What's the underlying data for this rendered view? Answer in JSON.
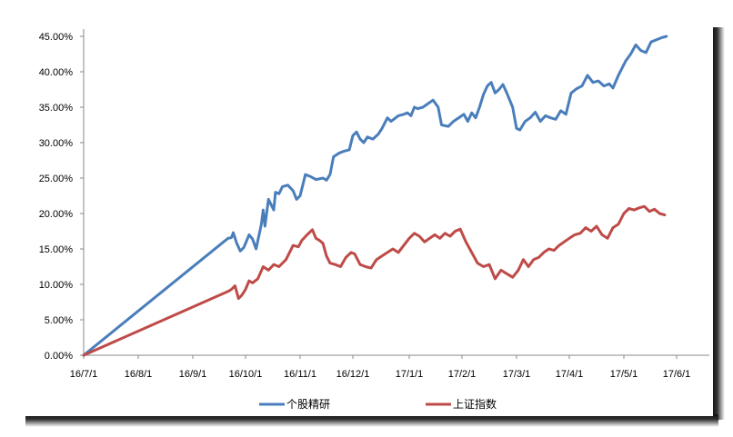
{
  "chart_data": {
    "type": "line",
    "title": "",
    "xlabel": "",
    "ylabel": "",
    "ylim": [
      0,
      45
    ],
    "yticks": [
      0,
      5,
      10,
      15,
      20,
      25,
      30,
      35,
      40,
      45
    ],
    "ytick_labels": [
      "0.00%",
      "5.00%",
      "10.00%",
      "15.00%",
      "20.00%",
      "25.00%",
      "30.00%",
      "35.00%",
      "40.00%",
      "45.00%"
    ],
    "xticks": [
      "16/7/1",
      "16/8/1",
      "16/9/1",
      "16/10/1",
      "16/11/1",
      "16/12/1",
      "17/1/1",
      "17/2/1",
      "17/3/1",
      "17/4/1",
      "17/5/1",
      "17/6/1"
    ],
    "legend_position": "bottom",
    "grid": false,
    "series": [
      {
        "name": "个股精研",
        "color": "#4a7ebb",
        "points": [
          [
            "2016-07-01",
            0.0
          ],
          [
            "2016-09-21",
            16.5
          ],
          [
            "2016-09-23",
            16.6
          ],
          [
            "2016-09-24",
            17.3
          ],
          [
            "2016-09-26",
            15.8
          ],
          [
            "2016-09-28",
            14.7
          ],
          [
            "2016-09-30",
            15.2
          ],
          [
            "2016-10-03",
            17.0
          ],
          [
            "2016-10-05",
            16.4
          ],
          [
            "2016-10-07",
            15.0
          ],
          [
            "2016-10-10",
            18.5
          ],
          [
            "2016-10-11",
            20.5
          ],
          [
            "2016-10-12",
            18.2
          ],
          [
            "2016-10-14",
            22.0
          ],
          [
            "2016-10-17",
            20.5
          ],
          [
            "2016-10-18",
            23.0
          ],
          [
            "2016-10-20",
            22.8
          ],
          [
            "2016-10-22",
            23.8
          ],
          [
            "2016-10-25",
            24.0
          ],
          [
            "2016-10-28",
            23.2
          ],
          [
            "2016-10-30",
            22.0
          ],
          [
            "2016-11-01",
            22.5
          ],
          [
            "2016-11-04",
            25.5
          ],
          [
            "2016-11-07",
            25.2
          ],
          [
            "2016-11-10",
            24.8
          ],
          [
            "2016-11-14",
            25.0
          ],
          [
            "2016-11-16",
            24.7
          ],
          [
            "2016-11-18",
            25.5
          ],
          [
            "2016-11-20",
            28.0
          ],
          [
            "2016-11-23",
            28.5
          ],
          [
            "2016-11-26",
            28.8
          ],
          [
            "2016-11-29",
            29.0
          ],
          [
            "2016-12-01",
            31.0
          ],
          [
            "2016-12-03",
            31.5
          ],
          [
            "2016-12-05",
            30.5
          ],
          [
            "2016-12-07",
            30.0
          ],
          [
            "2016-12-09",
            30.8
          ],
          [
            "2016-12-12",
            30.5
          ],
          [
            "2016-12-15",
            31.2
          ],
          [
            "2016-12-17",
            32.0
          ],
          [
            "2016-12-20",
            33.5
          ],
          [
            "2016-12-22",
            33.0
          ],
          [
            "2016-12-26",
            33.8
          ],
          [
            "2016-12-29",
            34.0
          ],
          [
            "2016-12-31",
            34.2
          ],
          [
            "2017-01-02",
            33.8
          ],
          [
            "2017-01-04",
            35.0
          ],
          [
            "2017-01-06",
            34.8
          ],
          [
            "2017-01-09",
            35.0
          ],
          [
            "2017-01-12",
            35.5
          ],
          [
            "2017-01-15",
            36.0
          ],
          [
            "2017-01-18",
            35.0
          ],
          [
            "2017-01-20",
            32.5
          ],
          [
            "2017-01-24",
            32.3
          ],
          [
            "2017-01-27",
            33.0
          ],
          [
            "2017-01-30",
            33.5
          ],
          [
            "2017-02-02",
            34.0
          ],
          [
            "2017-02-04",
            33.0
          ],
          [
            "2017-02-06",
            34.2
          ],
          [
            "2017-02-08",
            33.5
          ],
          [
            "2017-02-10",
            35.0
          ],
          [
            "2017-02-12",
            36.8
          ],
          [
            "2017-02-14",
            38.0
          ],
          [
            "2017-02-16",
            38.5
          ],
          [
            "2017-02-18",
            37.0
          ],
          [
            "2017-02-20",
            37.5
          ],
          [
            "2017-02-22",
            38.2
          ],
          [
            "2017-02-24",
            37.0
          ],
          [
            "2017-02-27",
            35.0
          ],
          [
            "2017-03-01",
            32.0
          ],
          [
            "2017-03-03",
            31.8
          ],
          [
            "2017-03-06",
            33.0
          ],
          [
            "2017-03-09",
            33.5
          ],
          [
            "2017-03-12",
            34.3
          ],
          [
            "2017-03-15",
            33.0
          ],
          [
            "2017-03-18",
            33.8
          ],
          [
            "2017-03-21",
            33.5
          ],
          [
            "2017-03-24",
            33.3
          ],
          [
            "2017-03-27",
            34.5
          ],
          [
            "2017-03-30",
            34.0
          ],
          [
            "2017-04-02",
            37.0
          ],
          [
            "2017-04-05",
            37.6
          ],
          [
            "2017-04-08",
            38.0
          ],
          [
            "2017-04-11",
            39.5
          ],
          [
            "2017-04-14",
            38.5
          ],
          [
            "2017-04-17",
            38.7
          ],
          [
            "2017-04-20",
            38.0
          ],
          [
            "2017-04-23",
            38.3
          ],
          [
            "2017-04-25",
            37.7
          ],
          [
            "2017-04-28",
            39.5
          ],
          [
            "2017-05-02",
            41.5
          ],
          [
            "2017-05-05",
            42.5
          ],
          [
            "2017-05-08",
            43.8
          ],
          [
            "2017-05-11",
            43.0
          ],
          [
            "2017-05-14",
            42.7
          ],
          [
            "2017-05-17",
            44.2
          ],
          [
            "2017-05-20",
            44.5
          ],
          [
            "2017-05-23",
            44.8
          ],
          [
            "2017-05-26",
            45.0
          ]
        ]
      },
      {
        "name": "上证指数",
        "color": "#be4b48",
        "points": [
          [
            "2016-07-01",
            0.0
          ],
          [
            "2016-09-21",
            9.0
          ],
          [
            "2016-09-23",
            9.3
          ],
          [
            "2016-09-25",
            9.8
          ],
          [
            "2016-09-27",
            8.0
          ],
          [
            "2016-09-29",
            8.5
          ],
          [
            "2016-10-01",
            9.3
          ],
          [
            "2016-10-03",
            10.5
          ],
          [
            "2016-10-05",
            10.2
          ],
          [
            "2016-10-08",
            10.8
          ],
          [
            "2016-10-11",
            12.5
          ],
          [
            "2016-10-14",
            12.0
          ],
          [
            "2016-10-17",
            12.8
          ],
          [
            "2016-10-20",
            12.5
          ],
          [
            "2016-10-24",
            13.5
          ],
          [
            "2016-10-28",
            15.5
          ],
          [
            "2016-10-31",
            15.3
          ],
          [
            "2016-11-02",
            16.2
          ],
          [
            "2016-11-05",
            17.0
          ],
          [
            "2016-11-08",
            17.7
          ],
          [
            "2016-11-10",
            16.5
          ],
          [
            "2016-11-12",
            16.2
          ],
          [
            "2016-11-14",
            15.8
          ],
          [
            "2016-11-16",
            14.0
          ],
          [
            "2016-11-18",
            13.0
          ],
          [
            "2016-11-21",
            12.8
          ],
          [
            "2016-11-24",
            12.5
          ],
          [
            "2016-11-27",
            13.8
          ],
          [
            "2016-11-30",
            14.5
          ],
          [
            "2016-12-02",
            14.3
          ],
          [
            "2016-12-05",
            12.8
          ],
          [
            "2016-12-08",
            12.5
          ],
          [
            "2016-12-11",
            12.3
          ],
          [
            "2016-12-14",
            13.5
          ],
          [
            "2016-12-17",
            14.0
          ],
          [
            "2016-12-20",
            14.5
          ],
          [
            "2016-12-23",
            15.0
          ],
          [
            "2016-12-26",
            14.5
          ],
          [
            "2016-12-29",
            15.5
          ],
          [
            "2017-01-01",
            16.5
          ],
          [
            "2017-01-04",
            17.2
          ],
          [
            "2017-01-07",
            16.8
          ],
          [
            "2017-01-10",
            16.0
          ],
          [
            "2017-01-13",
            16.5
          ],
          [
            "2017-01-16",
            17.0
          ],
          [
            "2017-01-19",
            16.5
          ],
          [
            "2017-01-22",
            17.2
          ],
          [
            "2017-01-25",
            16.8
          ],
          [
            "2017-01-28",
            17.5
          ],
          [
            "2017-01-31",
            17.8
          ],
          [
            "2017-02-03",
            16.0
          ],
          [
            "2017-02-06",
            14.5
          ],
          [
            "2017-02-09",
            13.0
          ],
          [
            "2017-02-12",
            12.5
          ],
          [
            "2017-02-15",
            12.8
          ],
          [
            "2017-02-18",
            10.8
          ],
          [
            "2017-02-21",
            12.0
          ],
          [
            "2017-02-24",
            11.5
          ],
          [
            "2017-02-27",
            11.0
          ],
          [
            "2017-03-02",
            12.0
          ],
          [
            "2017-03-05",
            13.5
          ],
          [
            "2017-03-08",
            12.5
          ],
          [
            "2017-03-11",
            13.5
          ],
          [
            "2017-03-14",
            13.8
          ],
          [
            "2017-03-17",
            14.5
          ],
          [
            "2017-03-20",
            15.0
          ],
          [
            "2017-03-23",
            14.8
          ],
          [
            "2017-03-26",
            15.5
          ],
          [
            "2017-03-29",
            16.0
          ],
          [
            "2017-04-01",
            16.5
          ],
          [
            "2017-04-04",
            17.0
          ],
          [
            "2017-04-07",
            17.2
          ],
          [
            "2017-04-10",
            18.0
          ],
          [
            "2017-04-13",
            17.5
          ],
          [
            "2017-04-16",
            18.2
          ],
          [
            "2017-04-19",
            17.0
          ],
          [
            "2017-04-22",
            16.5
          ],
          [
            "2017-04-25",
            18.0
          ],
          [
            "2017-04-28",
            18.5
          ],
          [
            "2017-05-01",
            20.0
          ],
          [
            "2017-05-04",
            20.7
          ],
          [
            "2017-05-07",
            20.5
          ],
          [
            "2017-05-10",
            20.8
          ],
          [
            "2017-05-13",
            21.0
          ],
          [
            "2017-05-16",
            20.3
          ],
          [
            "2017-05-19",
            20.6
          ],
          [
            "2017-05-22",
            20.0
          ],
          [
            "2017-05-25",
            19.8
          ]
        ]
      }
    ]
  }
}
